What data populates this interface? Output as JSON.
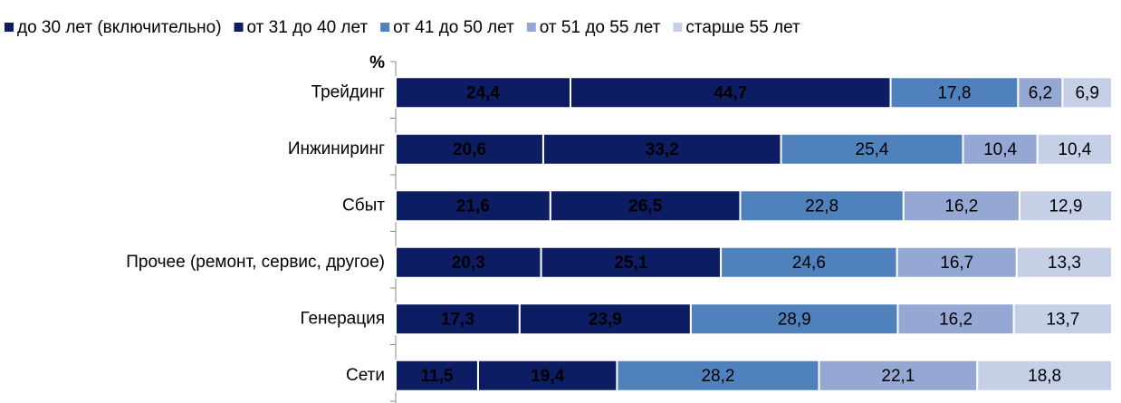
{
  "chart_data": {
    "type": "stacked_barh",
    "y_label": "%",
    "categories": [
      "Трейдинг",
      "Инжиниринг",
      "Сбыт",
      "Прочее (ремонт, сервис, другое)",
      "Генерация",
      "Сети"
    ],
    "xlim": [
      0,
      100
    ],
    "series": [
      {
        "name": "до 30 лет (включительно)",
        "color": "#0c1d63",
        "values": [
          24.4,
          20.6,
          21.6,
          20.3,
          17.3,
          11.5
        ],
        "value_labels": [
          "24,4",
          "20,6",
          "21,6",
          "20,3",
          "17,3",
          "11,5"
        ]
      },
      {
        "name": "от 31 до 40 лет",
        "color": "#0c1d63",
        "values": [
          44.7,
          33.2,
          26.5,
          25.1,
          23.9,
          19.4
        ],
        "value_labels": [
          "44,7",
          "33,2",
          "26,5",
          "25,1",
          "23,9",
          "19,4"
        ]
      },
      {
        "name": "от 41 до 50 лет",
        "color": "#4f81bd",
        "values": [
          17.8,
          25.4,
          22.8,
          24.6,
          28.9,
          28.2
        ],
        "value_labels": [
          "17,8",
          "25,4",
          "22,8",
          "24,6",
          "28,9",
          "28,2"
        ]
      },
      {
        "name": "от 51 до 55 лет",
        "color": "#95a8d3",
        "values": [
          6.2,
          10.4,
          16.2,
          16.7,
          16.2,
          22.1
        ],
        "value_labels": [
          "6,2",
          "10,4",
          "16,2",
          "16,7",
          "16,2",
          "22,1"
        ]
      },
      {
        "name": "старше 55 лет",
        "color": "#c5cfe6",
        "values": [
          6.9,
          10.4,
          12.9,
          13.3,
          13.7,
          18.8
        ],
        "value_labels": [
          "6,9",
          "10,4",
          "12,9",
          "13,3",
          "13,7",
          "18,8"
        ]
      }
    ]
  }
}
